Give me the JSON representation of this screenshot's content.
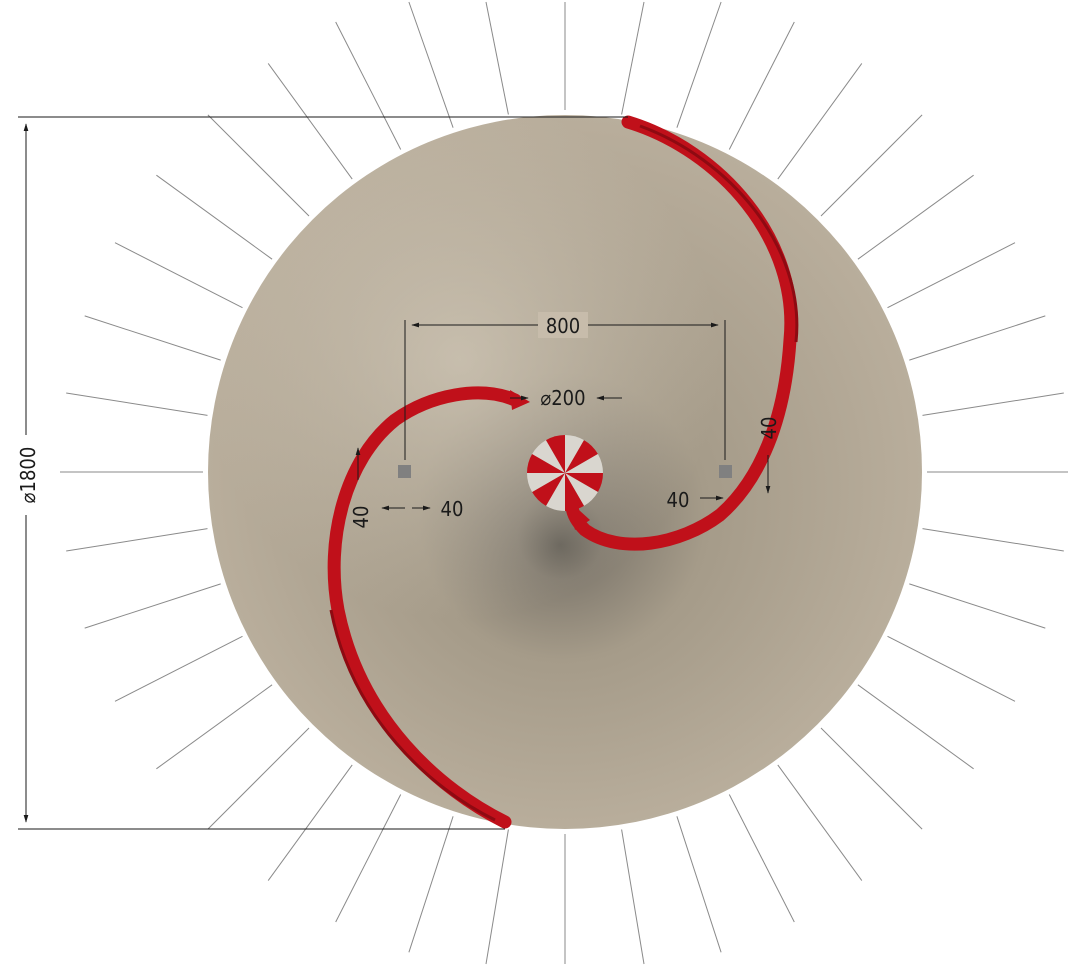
{
  "dimensions": {
    "outer_diameter": "⌀1800",
    "center_spacing": "800",
    "hub_diameter": "⌀200",
    "offset_left_horizontal": "40",
    "offset_left_vertical": "40",
    "offset_right_horizontal": "40",
    "offset_right_vertical": "40"
  },
  "colors": {
    "disk_light": "#bfb4a3",
    "disk_mid": "#ada290",
    "disk_shadow": "#6f6a60",
    "spiral": "#c0101a",
    "spiral_dark": "#8e0a12",
    "hub_light": "#d9d6cf",
    "ray": "#8a8a8a",
    "dimension_line": "#1a1a1a",
    "marker": "#808080"
  },
  "icons": {
    "hub": "checkered-hub-icon",
    "markers": "square-marker-icon"
  }
}
